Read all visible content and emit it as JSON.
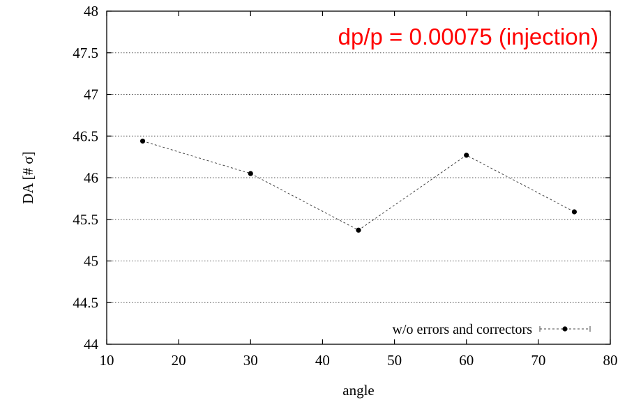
{
  "chart_data": {
    "type": "line",
    "title": "",
    "xlabel": "angle",
    "ylabel": "DA [# σ]",
    "xlim": [
      10,
      80
    ],
    "ylim": [
      44,
      48
    ],
    "x_ticks": [
      10,
      20,
      30,
      40,
      50,
      60,
      70,
      80
    ],
    "y_ticks": [
      44,
      44.5,
      45,
      45.5,
      46,
      46.5,
      47,
      47.5,
      48
    ],
    "x_tick_labels": [
      "10",
      "20",
      "30",
      "40",
      "50",
      "60",
      "70",
      "80"
    ],
    "y_tick_labels": [
      "44",
      "44.5",
      "45",
      "45.5",
      "46",
      "46.5",
      "47",
      "47.5",
      "48"
    ],
    "grid": "horizontal dotted",
    "legend_position": "bottom-right",
    "series": [
      {
        "name": "w/o errors and correctors",
        "x": [
          15,
          30,
          45,
          60,
          75
        ],
        "y": [
          46.44,
          46.05,
          45.37,
          46.27,
          45.59
        ],
        "line_style": "dashed",
        "marker": "filled-circle",
        "color": "#000000"
      }
    ],
    "annotation": {
      "text": "dp/p = 0.00075 (injection)",
      "color": "#ff0000"
    }
  }
}
